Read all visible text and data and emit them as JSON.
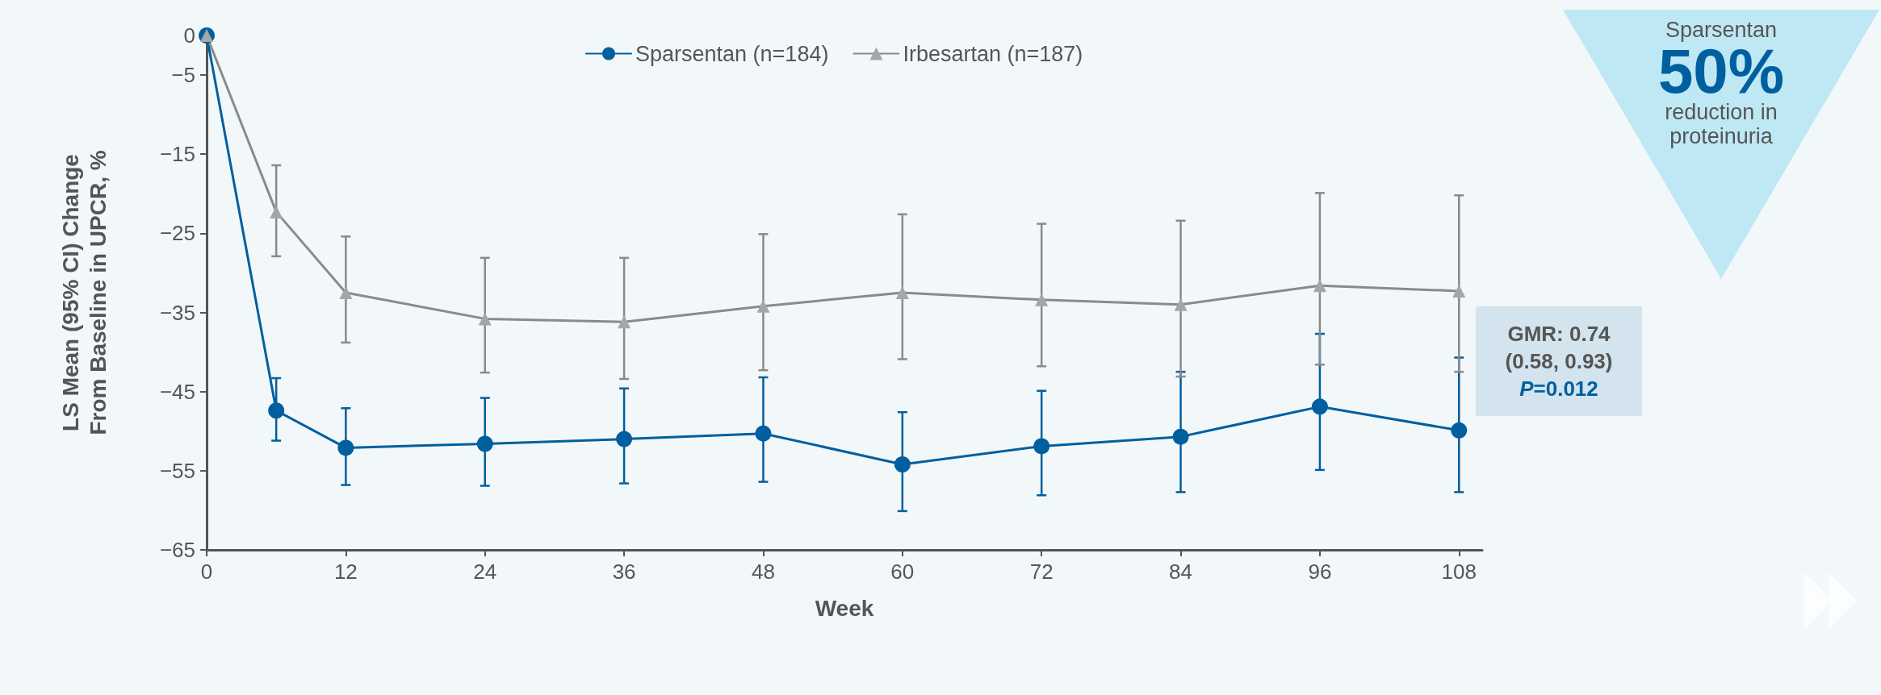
{
  "chart_data": {
    "type": "line",
    "xlabel": "Week",
    "ylabel": "LS Mean (95% CI) Change\nFrom Baseline in UPCR, %",
    "x": [
      0,
      6,
      12,
      24,
      36,
      48,
      60,
      72,
      84,
      96,
      108
    ],
    "series": [
      {
        "name": "Sparsentan (n=184)",
        "color": "#005f9e",
        "marker": "circle",
        "values": [
          0,
          -47.4,
          -52.1,
          -51.6,
          -51.0,
          -50.3,
          -54.2,
          -51.9,
          -50.7,
          -46.9,
          -49.9
        ],
        "errors": [
          null,
          [
            -51.2,
            -43.3
          ],
          [
            -56.8,
            -47.1
          ],
          [
            -56.9,
            -45.8
          ],
          [
            -56.6,
            -44.6
          ],
          [
            -56.4,
            -43.2
          ],
          [
            -60.1,
            -47.6
          ],
          [
            -58.1,
            -44.9
          ],
          [
            -57.7,
            -42.5
          ],
          [
            -54.9,
            -37.7
          ],
          [
            -57.7,
            -40.7
          ]
        ]
      },
      {
        "name": "Irbesartan (n=187)",
        "color": "#8a8a8a",
        "marker": "triangle",
        "values": [
          0,
          -22.3,
          -32.5,
          -35.8,
          -36.2,
          -34.2,
          -32.5,
          -33.4,
          -34.0,
          -31.6,
          -32.3
        ],
        "errors": [
          null,
          [
            -27.9,
            -16.4
          ],
          [
            -38.8,
            -25.4
          ],
          [
            -42.6,
            -28.1
          ],
          [
            -43.4,
            -28.1
          ],
          [
            -42.3,
            -25.1
          ],
          [
            -40.9,
            -22.6
          ],
          [
            -41.8,
            -23.8
          ],
          [
            -43.1,
            -23.4
          ],
          [
            -41.6,
            -19.9
          ],
          [
            -42.5,
            -20.2
          ]
        ]
      }
    ],
    "xlim": [
      0,
      110
    ],
    "xticks": [
      0,
      12,
      24,
      36,
      48,
      60,
      72,
      84,
      96,
      108
    ],
    "ylim": [
      -65,
      0
    ],
    "yticks": [
      0,
      -5,
      -15,
      -25,
      -35,
      -45,
      -55,
      -65
    ],
    "grid": false,
    "legend": "top",
    "line_style": "solid",
    "annotations": [
      "GMR: 0.74",
      "(0.58, 0.93)",
      "P=0.012",
      "Sparsentan",
      "50%",
      "reduction in proteinuria"
    ]
  }
}
